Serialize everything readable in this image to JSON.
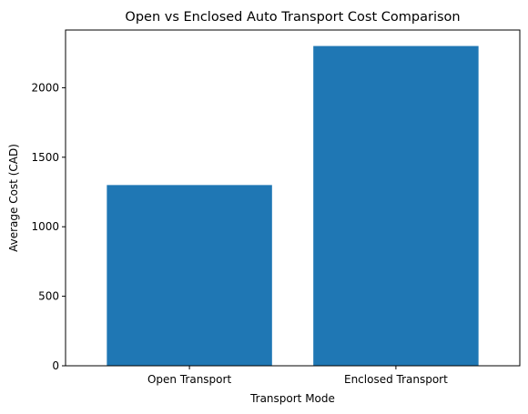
{
  "colors": {
    "bar": "#1f77b4",
    "axis": "#000000",
    "background": "#ffffff"
  },
  "chart_data": {
    "type": "bar",
    "title": "Open vs Enclosed Auto Transport Cost Comparison",
    "xlabel": "Transport Mode",
    "ylabel": "Average Cost (CAD)",
    "categories": [
      "Open Transport",
      "Enclosed Transport"
    ],
    "values": [
      1300,
      2300
    ],
    "ylim": [
      0,
      2415
    ],
    "yticks": [
      0,
      500,
      1000,
      1500,
      2000
    ],
    "grid": false,
    "legend": "none"
  }
}
